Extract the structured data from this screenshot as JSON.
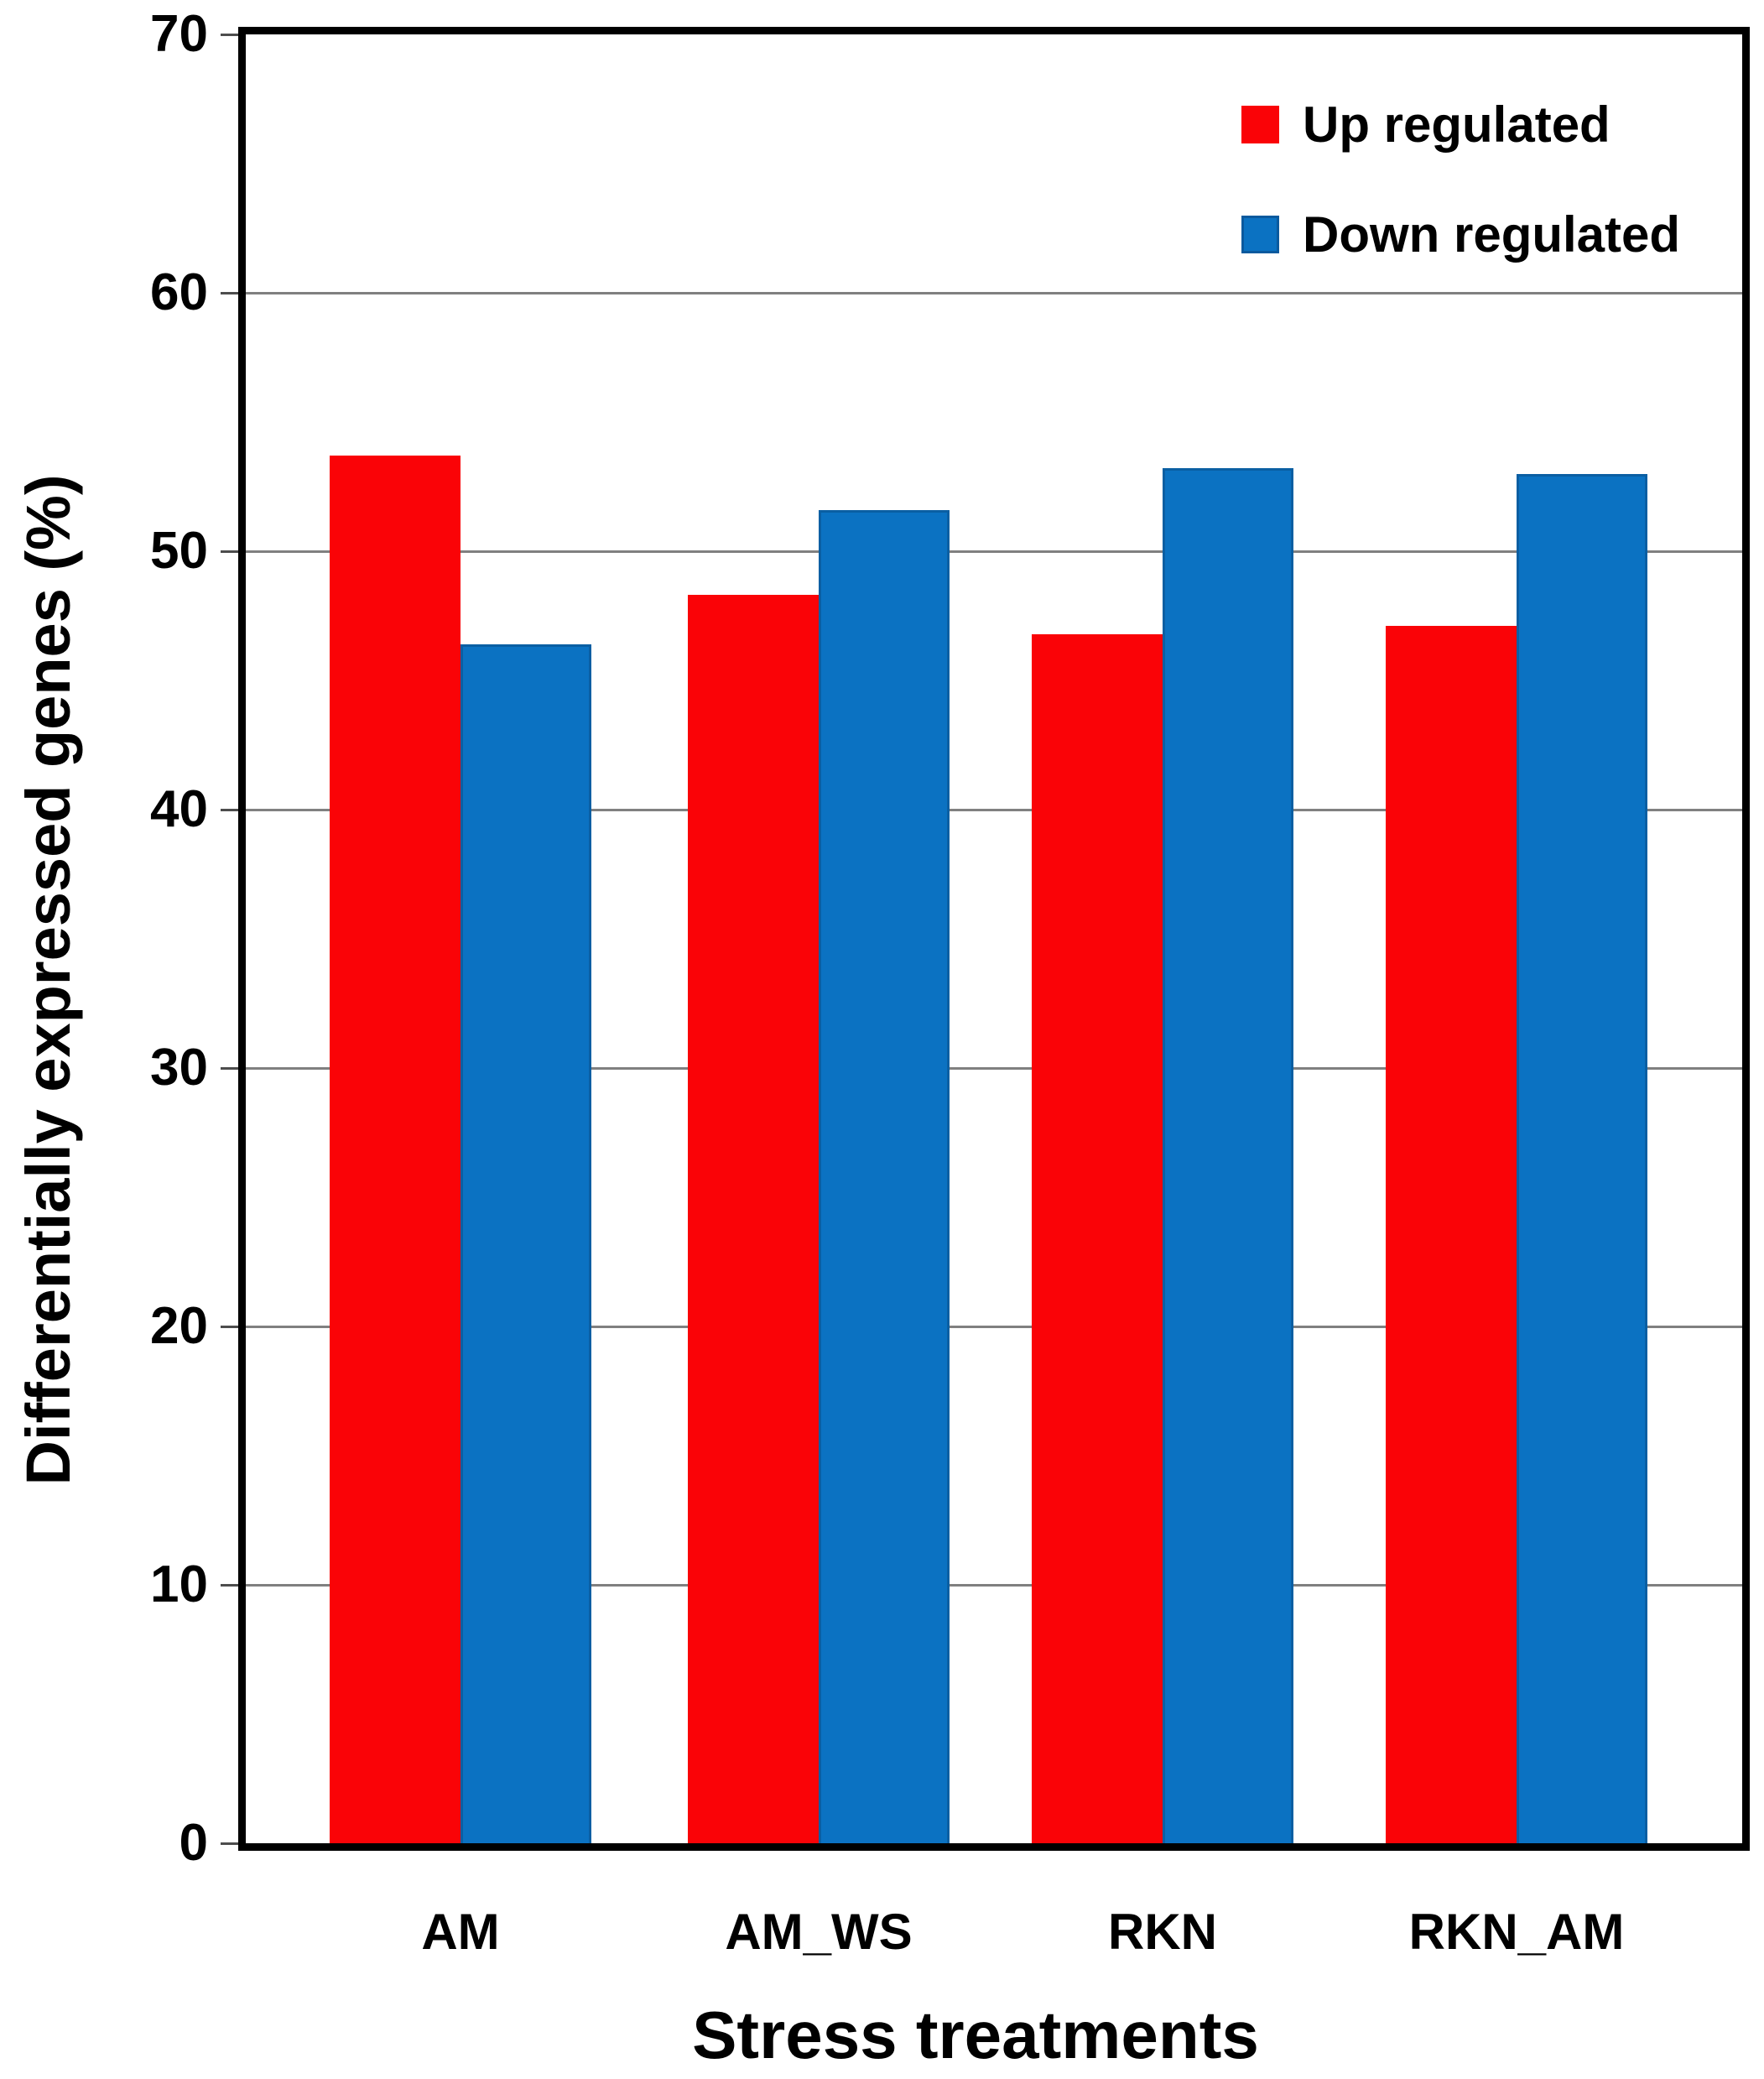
{
  "chart_data": {
    "type": "bar",
    "title": "",
    "xlabel": "Stress treatments",
    "ylabel": "Differentially expressed genes (%)",
    "categories": [
      "AM",
      "AM_WS",
      "RKN",
      "RKN_AM"
    ],
    "series": [
      {
        "name": "Up regulated",
        "color": "#fa0307",
        "values": [
          53.7,
          48.3,
          46.8,
          47.1
        ]
      },
      {
        "name": "Down regulated",
        "color": "#0b72c2",
        "values": [
          46.4,
          51.6,
          53.2,
          53.0
        ]
      }
    ],
    "ylim": [
      0,
      70
    ],
    "y_ticks": [
      0,
      10,
      20,
      30,
      40,
      50,
      60,
      70
    ],
    "grid": "horizontal-gray",
    "legend_position": "top-right",
    "colors": {
      "axis_frame": "#000000",
      "gridline": "#808080",
      "up_bar": "#fa0307",
      "down_bar": "#0b72c2",
      "down_bar_edge": "#0a5fa3",
      "text": "#000000",
      "background": "#ffffff"
    }
  }
}
